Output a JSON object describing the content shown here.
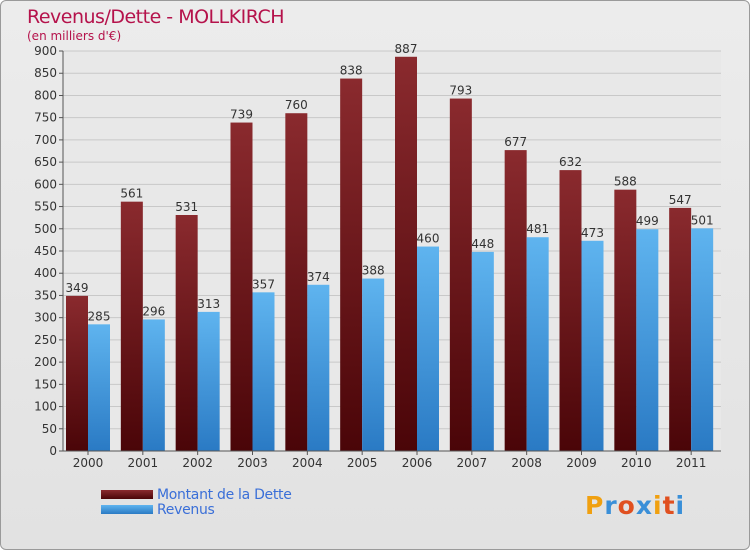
{
  "title": "Revenus/Dette - MOLLKIRCH",
  "subtitle": "(en milliers d'€)",
  "legend": {
    "debt_label": "Montant de la Dette",
    "revenue_label": "Revenus"
  },
  "logo": {
    "text": "Proxiti"
  },
  "colors": {
    "debt": "#7a1a1f",
    "debt_dark": "#4a0508",
    "revenue": "#58aeeb",
    "revenue_dark": "#2a7ac4",
    "title": "#b5124b",
    "legend_text": "#3a6fd8"
  },
  "chart_data": {
    "type": "bar",
    "categories": [
      "2000",
      "2001",
      "2002",
      "2003",
      "2004",
      "2005",
      "2006",
      "2007",
      "2008",
      "2009",
      "2010",
      "2011"
    ],
    "series": [
      {
        "name": "Montant de la Dette",
        "values": [
          349,
          561,
          531,
          739,
          760,
          838,
          887,
          793,
          677,
          632,
          588,
          547
        ]
      },
      {
        "name": "Revenus",
        "values": [
          285,
          296,
          313,
          357,
          374,
          388,
          460,
          448,
          481,
          473,
          499,
          501
        ]
      }
    ],
    "title": "Revenus/Dette - MOLLKIRCH",
    "subtitle": "(en milliers d'€)",
    "ylim": [
      0,
      900
    ],
    "yticks": [
      0,
      50,
      100,
      150,
      200,
      250,
      300,
      350,
      400,
      450,
      500,
      550,
      600,
      650,
      700,
      750,
      800,
      850,
      900
    ],
    "grid": true,
    "legend_position": "bottom-left"
  }
}
